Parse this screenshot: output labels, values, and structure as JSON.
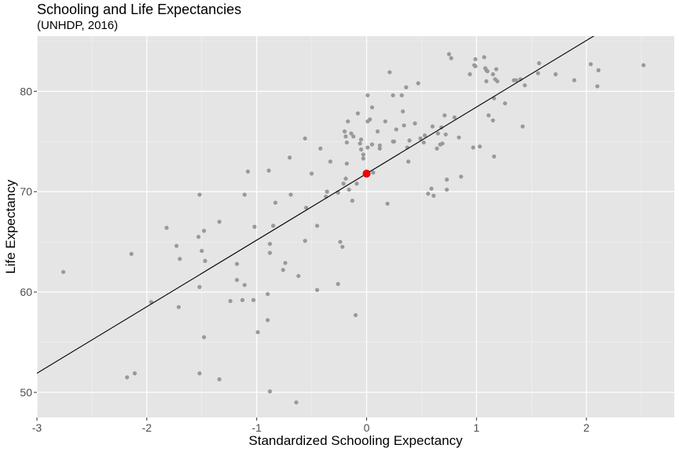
{
  "chart_data": {
    "type": "scatter",
    "title": "Schooling and Life Expectancies",
    "subtitle": "(UNHDP, 2016)",
    "xlabel": "Standardized Schooling Expectancy",
    "ylabel": "Life Expectancy",
    "xlim": [
      -3,
      2.8
    ],
    "ylim": [
      47.5,
      85.5
    ],
    "x_ticks": [
      -3,
      -2,
      -1,
      0,
      1,
      2
    ],
    "x_tick_labels": [
      "-3",
      "-2",
      "-1",
      "0",
      "1",
      "2"
    ],
    "y_ticks": [
      50,
      60,
      70,
      80
    ],
    "y_tick_labels": [
      "50",
      "60",
      "70",
      "80"
    ],
    "grid": true,
    "point_color": "#999999",
    "highlight_color": "#ff0000",
    "line_color": "#000000",
    "panel_background": "#e5e5e5",
    "regression_line": {
      "intercept": 71.8,
      "slope": 6.63
    },
    "highlight_point": {
      "x": 0.0,
      "y": 71.8
    },
    "points": [
      [
        -2.76,
        62.0
      ],
      [
        -2.18,
        51.5
      ],
      [
        -2.14,
        63.8
      ],
      [
        -2.11,
        51.9
      ],
      [
        -1.96,
        59.0
      ],
      [
        -1.82,
        66.4
      ],
      [
        -1.73,
        64.6
      ],
      [
        -1.71,
        58.5
      ],
      [
        -1.7,
        63.3
      ],
      [
        -1.53,
        65.5
      ],
      [
        -1.52,
        69.7
      ],
      [
        -1.52,
        60.5
      ],
      [
        -1.52,
        51.9
      ],
      [
        -1.5,
        64.1
      ],
      [
        -1.48,
        66.1
      ],
      [
        -1.48,
        55.5
      ],
      [
        -1.47,
        63.1
      ],
      [
        -1.34,
        67.0
      ],
      [
        -1.34,
        51.3
      ],
      [
        -1.24,
        59.1
      ],
      [
        -1.18,
        62.8
      ],
      [
        -1.18,
        61.2
      ],
      [
        -1.13,
        59.2
      ],
      [
        -1.11,
        69.7
      ],
      [
        -1.11,
        60.7
      ],
      [
        -1.08,
        72.0
      ],
      [
        -1.03,
        59.2
      ],
      [
        -1.02,
        66.5
      ],
      [
        -0.99,
        56.0
      ],
      [
        -0.9,
        59.8
      ],
      [
        -0.9,
        57.2
      ],
      [
        -0.89,
        72.1
      ],
      [
        -0.88,
        64.8
      ],
      [
        -0.88,
        63.9
      ],
      [
        -0.88,
        50.1
      ],
      [
        -0.85,
        66.6
      ],
      [
        -0.83,
        68.9
      ],
      [
        -0.76,
        62.2
      ],
      [
        -0.74,
        62.9
      ],
      [
        -0.7,
        73.4
      ],
      [
        -0.69,
        69.7
      ],
      [
        -0.64,
        49.0
      ],
      [
        -0.62,
        61.6
      ],
      [
        -0.56,
        75.3
      ],
      [
        -0.56,
        65.1
      ],
      [
        -0.55,
        68.4
      ],
      [
        -0.5,
        71.8
      ],
      [
        -0.45,
        60.2
      ],
      [
        -0.45,
        66.6
      ],
      [
        -0.42,
        74.3
      ],
      [
        -0.37,
        69.5
      ],
      [
        -0.36,
        70.0
      ],
      [
        -0.33,
        73.0
      ],
      [
        -0.26,
        69.9
      ],
      [
        -0.26,
        60.8
      ],
      [
        -0.24,
        65.0
      ],
      [
        -0.22,
        64.5
      ],
      [
        -0.21,
        70.8
      ],
      [
        -0.2,
        76.0
      ],
      [
        -0.19,
        75.5
      ],
      [
        -0.19,
        71.3
      ],
      [
        -0.18,
        74.9
      ],
      [
        -0.18,
        72.8
      ],
      [
        -0.17,
        77.0
      ],
      [
        -0.16,
        70.2
      ],
      [
        -0.14,
        75.8
      ],
      [
        -0.13,
        69.1
      ],
      [
        -0.12,
        75.5
      ],
      [
        -0.1,
        57.7
      ],
      [
        -0.09,
        70.8
      ],
      [
        -0.08,
        77.8
      ],
      [
        -0.06,
        74.8
      ],
      [
        -0.05,
        75.2
      ],
      [
        -0.05,
        74.2
      ],
      [
        -0.03,
        73.7
      ],
      [
        -0.03,
        73.3
      ],
      [
        0.01,
        74.4
      ],
      [
        0.01,
        77.0
      ],
      [
        0.01,
        79.6
      ],
      [
        0.03,
        77.2
      ],
      [
        0.05,
        78.4
      ],
      [
        0.05,
        74.7
      ],
      [
        0.06,
        71.9
      ],
      [
        0.1,
        76.0
      ],
      [
        0.12,
        74.6
      ],
      [
        0.12,
        74.3
      ],
      [
        0.17,
        77.0
      ],
      [
        0.19,
        68.8
      ],
      [
        0.21,
        81.9
      ],
      [
        0.24,
        75.0
      ],
      [
        0.24,
        79.6
      ],
      [
        0.25,
        75.0
      ],
      [
        0.27,
        76.2
      ],
      [
        0.32,
        79.6
      ],
      [
        0.33,
        78.0
      ],
      [
        0.34,
        76.6
      ],
      [
        0.36,
        80.4
      ],
      [
        0.37,
        74.4
      ],
      [
        0.38,
        73.0
      ],
      [
        0.39,
        75.1
      ],
      [
        0.44,
        76.8
      ],
      [
        0.47,
        80.8
      ],
      [
        0.49,
        75.3
      ],
      [
        0.52,
        74.9
      ],
      [
        0.53,
        75.6
      ],
      [
        0.56,
        69.8
      ],
      [
        0.59,
        70.3
      ],
      [
        0.6,
        76.5
      ],
      [
        0.61,
        69.6
      ],
      [
        0.64,
        74.3
      ],
      [
        0.65,
        75.8
      ],
      [
        0.67,
        74.7
      ],
      [
        0.68,
        76.4
      ],
      [
        0.69,
        74.8
      ],
      [
        0.71,
        77.6
      ],
      [
        0.72,
        75.7
      ],
      [
        0.73,
        71.2
      ],
      [
        0.73,
        70.2
      ],
      [
        0.75,
        83.7
      ],
      [
        0.77,
        83.3
      ],
      [
        0.8,
        77.4
      ],
      [
        0.84,
        75.4
      ],
      [
        0.86,
        71.5
      ],
      [
        0.94,
        81.7
      ],
      [
        0.97,
        74.4
      ],
      [
        0.98,
        82.6
      ],
      [
        0.99,
        83.2
      ],
      [
        0.99,
        82.5
      ],
      [
        1.03,
        74.5
      ],
      [
        1.07,
        83.4
      ],
      [
        1.08,
        82.3
      ],
      [
        1.09,
        82.1
      ],
      [
        1.09,
        81.0
      ],
      [
        1.1,
        82.0
      ],
      [
        1.11,
        77.6
      ],
      [
        1.15,
        81.7
      ],
      [
        1.15,
        77.1
      ],
      [
        1.16,
        79.3
      ],
      [
        1.16,
        73.5
      ],
      [
        1.17,
        81.2
      ],
      [
        1.18,
        82.2
      ],
      [
        1.19,
        81.0
      ],
      [
        1.26,
        78.8
      ],
      [
        1.34,
        81.1
      ],
      [
        1.36,
        81.1
      ],
      [
        1.4,
        81.2
      ],
      [
        1.42,
        76.5
      ],
      [
        1.44,
        80.6
      ],
      [
        1.56,
        81.8
      ],
      [
        1.57,
        82.8
      ],
      [
        1.72,
        81.7
      ],
      [
        1.89,
        81.1
      ],
      [
        2.04,
        82.7
      ],
      [
        2.1,
        80.5
      ],
      [
        2.11,
        82.1
      ],
      [
        2.52,
        82.6
      ]
    ]
  }
}
